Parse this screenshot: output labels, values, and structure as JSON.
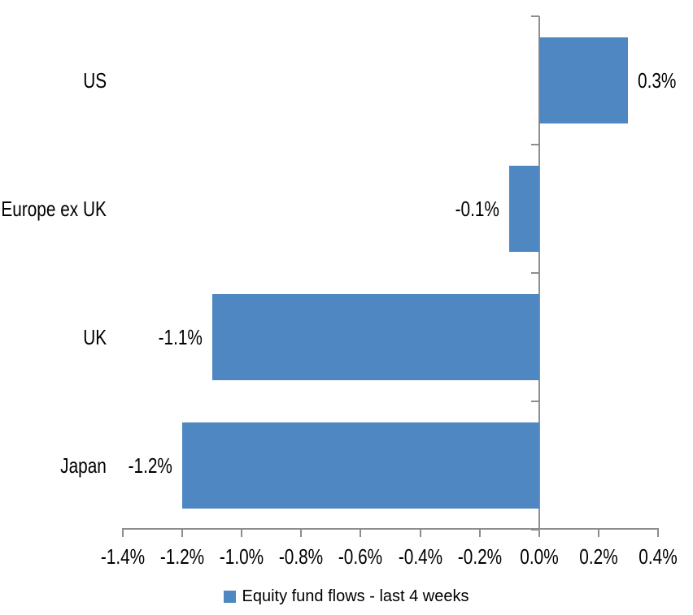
{
  "chart_data": {
    "type": "bar",
    "orientation": "horizontal",
    "title": "",
    "xlabel": "",
    "ylabel": "",
    "categories": [
      "US",
      "Europe ex UK",
      "UK",
      "Japan"
    ],
    "values": [
      0.3,
      -0.1,
      -1.1,
      -1.2
    ],
    "value_labels": [
      "0.3%",
      "-0.1%",
      "-1.1%",
      "-1.2%"
    ],
    "series_name": "Equity fund flows - last 4 weeks",
    "xlim": [
      -1.4,
      0.4
    ],
    "x_tick_values": [
      -1.4,
      -1.2,
      -1.0,
      -0.8,
      -0.6,
      -0.4,
      -0.2,
      0.0,
      0.2,
      0.4
    ],
    "x_tick_labels": [
      "-1.4%",
      "-1.2%",
      "-1.0%",
      "-0.8%",
      "-0.6%",
      "-0.4%",
      "-0.2%",
      "0.0%",
      "0.2%",
      "0.4%"
    ],
    "grid": false,
    "legend_position": "bottom",
    "colors": {
      "bar": "#4E87C1",
      "axis": "#8E8E8E",
      "text": "#000000",
      "background": "#FFFFFF"
    }
  }
}
